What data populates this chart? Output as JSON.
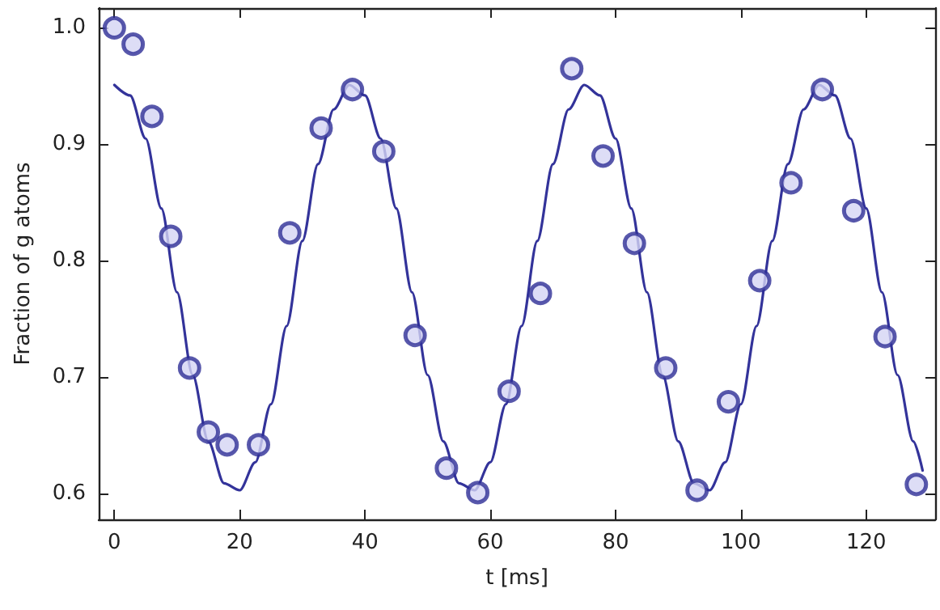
{
  "chart_data": {
    "type": "scatter",
    "xlabel": "t [ms]",
    "ylabel": "Fraction of g atoms",
    "xlim": [
      -2.5,
      131
    ],
    "ylim": [
      0.578,
      1.017
    ],
    "xticks": [
      0,
      20,
      40,
      60,
      80,
      100,
      120
    ],
    "yticks": [
      0.6,
      0.7,
      0.8,
      0.9,
      {
        "value": 1,
        "label": "1.0"
      }
    ],
    "grid": false,
    "series": [
      {
        "marker": "circle",
        "color": "#2e2e96",
        "x": [
          0,
          3,
          6,
          9,
          12,
          15,
          18,
          23,
          28,
          33,
          38,
          43,
          48,
          53,
          58,
          63,
          68,
          73,
          78,
          83,
          88,
          93,
          98,
          103,
          108,
          113,
          118,
          123,
          128
        ],
        "values": [
          1.0,
          0.986,
          0.924,
          0.821,
          0.708,
          0.653,
          0.642,
          0.642,
          0.824,
          0.914,
          0.947,
          0.894,
          0.736,
          0.622,
          0.601,
          0.688,
          0.772,
          0.965,
          0.89,
          0.815,
          0.708,
          0.603,
          0.679,
          0.783,
          0.867,
          0.947,
          0.843,
          0.735,
          0.608
        ]
      },
      {
        "type": "line",
        "marker": "none",
        "color": "#33339a",
        "x": [
          0,
          2.5,
          5,
          7.5,
          10,
          12.5,
          15,
          17.5,
          20,
          22.5,
          25,
          27.5,
          30,
          32.5,
          35,
          37.5,
          40,
          42.5,
          45,
          47.5,
          50,
          52.5,
          55,
          57.5,
          60,
          62.5,
          65,
          67.5,
          70,
          72.5,
          75,
          77.5,
          80,
          82.5,
          85,
          87.5,
          90,
          92.5,
          95,
          97.5,
          100,
          102.5,
          105,
          107.5,
          110,
          112.5,
          115,
          117.5,
          120,
          122.5,
          125,
          127.5,
          129
        ],
        "values": [
          0.951,
          0.942,
          0.905,
          0.845,
          0.773,
          0.702,
          0.645,
          0.609,
          0.603,
          0.627,
          0.677,
          0.744,
          0.817,
          0.883,
          0.93,
          0.951,
          0.942,
          0.905,
          0.845,
          0.773,
          0.702,
          0.645,
          0.609,
          0.603,
          0.627,
          0.677,
          0.744,
          0.817,
          0.883,
          0.93,
          0.951,
          0.942,
          0.905,
          0.845,
          0.773,
          0.702,
          0.645,
          0.609,
          0.603,
          0.627,
          0.677,
          0.744,
          0.817,
          0.883,
          0.93,
          0.951,
          0.942,
          0.905,
          0.845,
          0.773,
          0.702,
          0.645,
          0.62
        ]
      }
    ]
  }
}
